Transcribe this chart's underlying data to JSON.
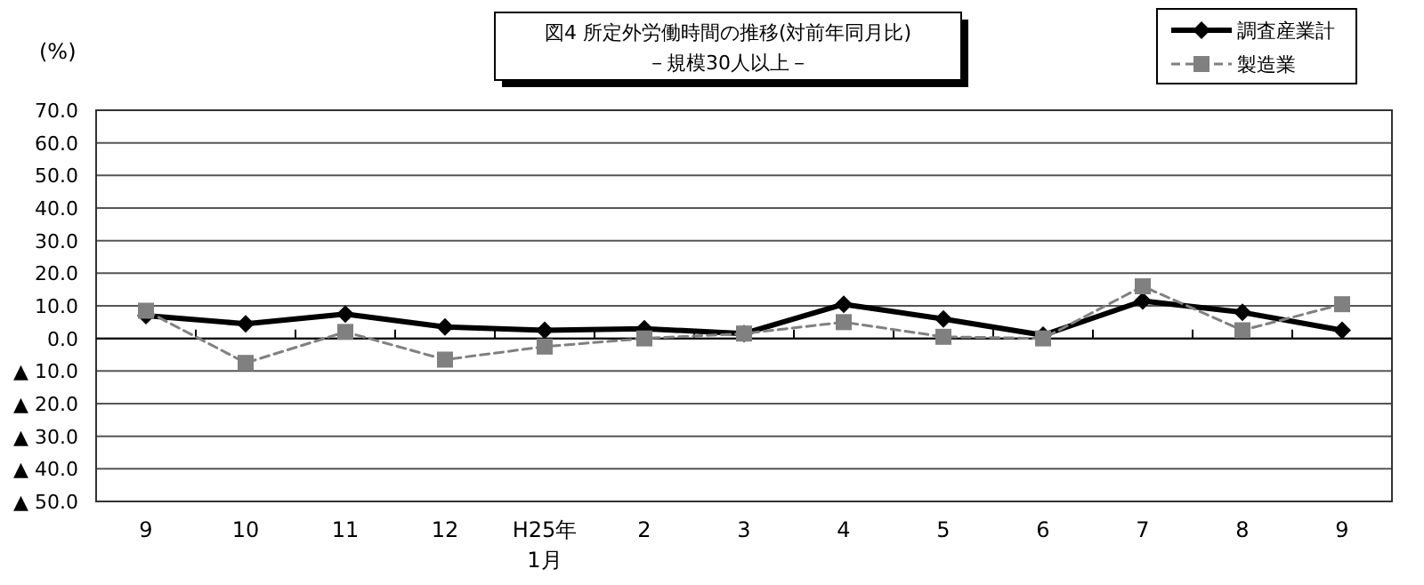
{
  "chart_data": {
    "type": "line",
    "title": "図4  所定外労働時間の推移(対前年同月比)",
    "subtitle": "－規模30人以上－",
    "ylabel": "(%)",
    "categories": [
      "9",
      "10",
      "11",
      "12",
      "H25年\n1月",
      "2",
      "3",
      "4",
      "5",
      "6",
      "7",
      "8",
      "9"
    ],
    "series": [
      {
        "name": "調査産業計",
        "color": "#000000",
        "marker": "diamond",
        "line_style": "solid",
        "values": [
          7,
          4.5,
          7.5,
          3.5,
          2.5,
          3,
          1.5,
          10.5,
          6,
          1,
          11.5,
          8,
          2.5
        ]
      },
      {
        "name": "製造業",
        "color": "#808080",
        "marker": "square",
        "line_style": "dashed",
        "values": [
          8.5,
          -7.5,
          2,
          -6.5,
          -2.5,
          0,
          1.5,
          5,
          0.5,
          0,
          16,
          2.5,
          10.5
        ]
      }
    ],
    "ylim": [
      -50,
      70
    ],
    "yticks": [
      {
        "value": 70,
        "label": "70.0"
      },
      {
        "value": 60,
        "label": "60.0"
      },
      {
        "value": 50,
        "label": "50.0"
      },
      {
        "value": 40,
        "label": "40.0"
      },
      {
        "value": 30,
        "label": "30.0"
      },
      {
        "value": 20,
        "label": "20.0"
      },
      {
        "value": 10,
        "label": "10.0"
      },
      {
        "value": 0,
        "label": "0.0"
      },
      {
        "value": -10,
        "label": "▲ 10.0"
      },
      {
        "value": -20,
        "label": "▲ 20.0"
      },
      {
        "value": -30,
        "label": "▲ 30.0"
      },
      {
        "value": -40,
        "label": "▲ 40.0"
      },
      {
        "value": -50,
        "label": "▲ 50.0"
      }
    ],
    "grid": "y",
    "legend": "top right"
  }
}
